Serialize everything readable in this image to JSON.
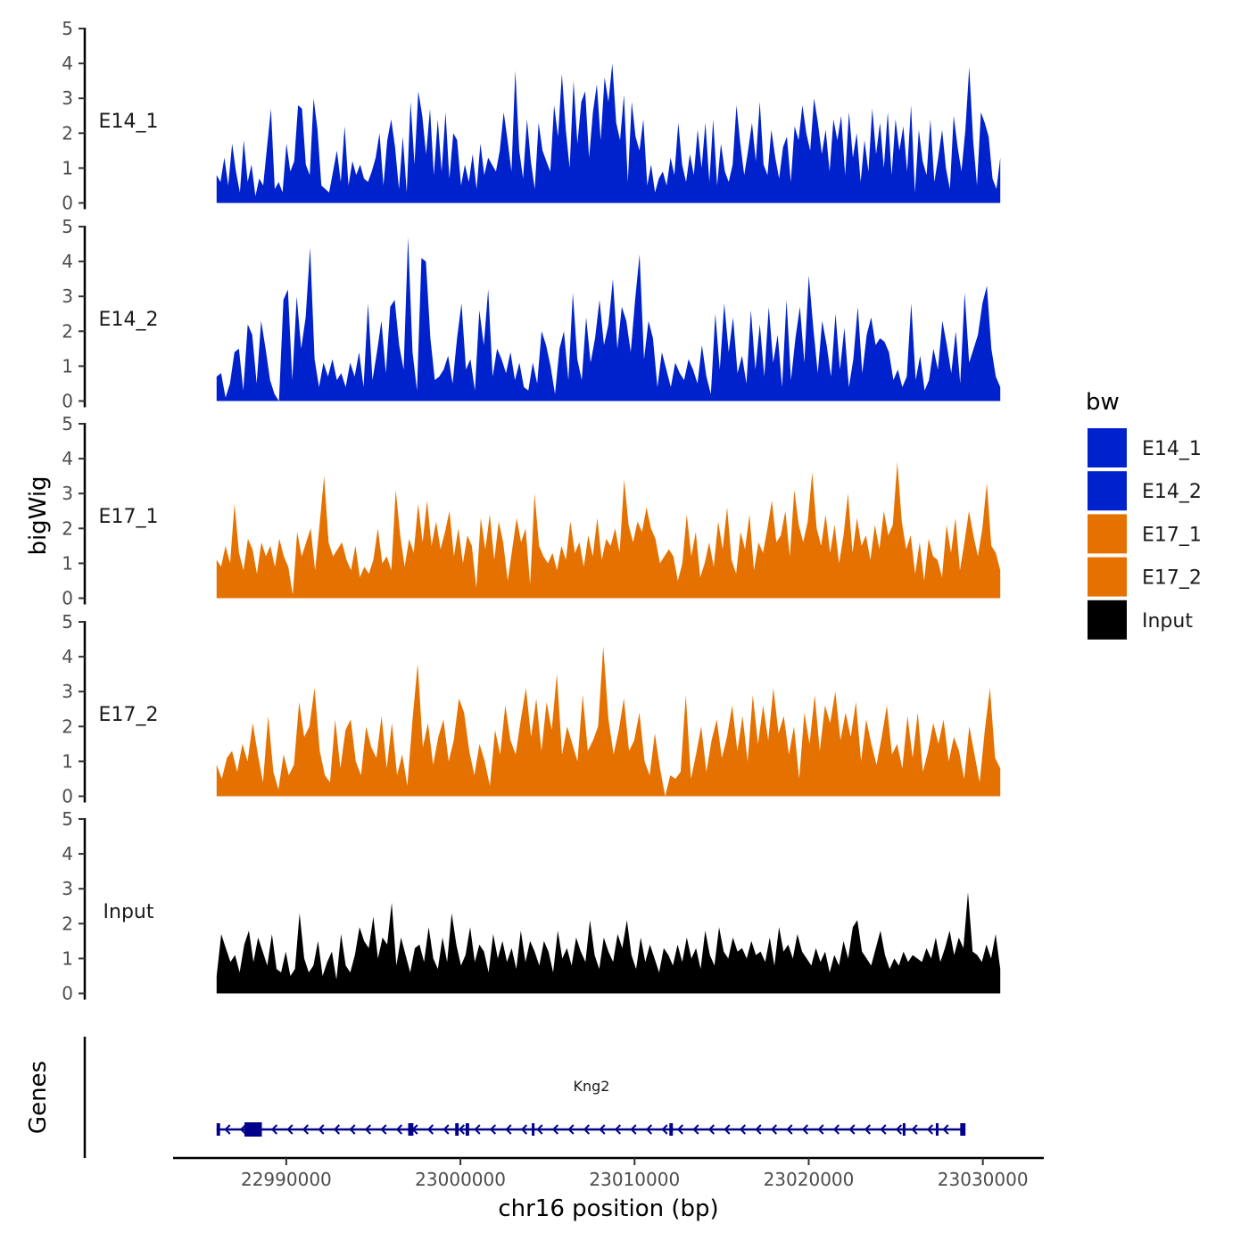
{
  "chart_data": {
    "type": "area",
    "chromosome": "chr16",
    "y_axis_title": "bigWig",
    "x_axis_title": "chr16 position (bp)",
    "x_range": [
      22983500,
      23033500
    ],
    "data_range": [
      22986000,
      23031000
    ],
    "x_ticks": [
      22990000,
      23000000,
      23010000,
      23020000,
      23030000
    ],
    "x_tick_labels": [
      "22990000",
      "23000000",
      "23010000",
      "23020000",
      "23030000"
    ],
    "y_range": [
      0,
      5
    ],
    "y_ticks": [
      0,
      1,
      2,
      3,
      4,
      5
    ],
    "y_tick_labels": [
      "0",
      "1",
      "2",
      "3",
      "4",
      "5"
    ],
    "legend": {
      "title": "bw",
      "position": "right",
      "entries": [
        {
          "label": "E14_1",
          "color": "#0022cc"
        },
        {
          "label": "E14_2",
          "color": "#0022cc"
        },
        {
          "label": "E17_1",
          "color": "#e57200"
        },
        {
          "label": "E17_2",
          "color": "#e57200"
        },
        {
          "label": "Input",
          "color": "#000000"
        }
      ]
    },
    "series": [
      {
        "name": "E14_1",
        "color": "#0022cc",
        "values": [
          0.8,
          0.6,
          1.3,
          0.5,
          1.7,
          0.9,
          0.3,
          1.8,
          0.6,
          1.1,
          0.2,
          0.7,
          0.5,
          1.6,
          2.7,
          0.4,
          0.6,
          0.3,
          1.7,
          0.9,
          1.2,
          2.8,
          2.7,
          1.1,
          0.8,
          3.0,
          2.1,
          0.5,
          0.4,
          0.3,
          0.9,
          1.5,
          0.6,
          2.2,
          0.5,
          1.2,
          0.8,
          1.1,
          0.7,
          0.6,
          0.9,
          1.3,
          2.0,
          0.5,
          1.8,
          2.4,
          1.6,
          0.4,
          1.9,
          0.3,
          2.9,
          1.1,
          3.2,
          2.5,
          1.4,
          2.7,
          0.8,
          2.4,
          0.9,
          2.6,
          0.7,
          2.0,
          1.8,
          0.5,
          1.1,
          0.6,
          1.4,
          0.4,
          1.7,
          0.8,
          1.3,
          1.1,
          0.9,
          1.5,
          2.6,
          1.8,
          0.9,
          3.8,
          1.5,
          0.7,
          2.4,
          1.2,
          0.4,
          2.3,
          1.5,
          1.2,
          0.9,
          2.8,
          1.9,
          3.7,
          2.1,
          1.0,
          3.5,
          1.7,
          2.9,
          3.2,
          1.3,
          2.6,
          3.4,
          1.8,
          3.6,
          2.9,
          4.0,
          2.3,
          1.8,
          3.1,
          0.6,
          2.9,
          1.9,
          1.5,
          2.4,
          0.5,
          1.1,
          0.3,
          0.7,
          0.9,
          0.5,
          1.3,
          0.8,
          2.3,
          1.1,
          0.6,
          1.4,
          0.8,
          2.1,
          1.0,
          2.3,
          0.6,
          2.4,
          0.5,
          1.7,
          0.9,
          0.6,
          1.1,
          2.8,
          1.7,
          0.8,
          1.5,
          2.3,
          1.2,
          2.9,
          1.1,
          0.8,
          2.1,
          1.3,
          0.7,
          1.6,
          1.9,
          0.6,
          2.2,
          1.8,
          2.8,
          2.0,
          1.5,
          3.0,
          2.3,
          1.4,
          2.1,
          0.9,
          2.4,
          1.8,
          2.5,
          0.8,
          2.6,
          1.3,
          2.0,
          0.6,
          1.8,
          0.9,
          2.7,
          1.4,
          2.3,
          1.0,
          2.6,
          0.8,
          2.4,
          1.5,
          2.2,
          0.9,
          2.8,
          0.3,
          2.1,
          1.2,
          0.8,
          2.4,
          0.6,
          1.3,
          2.1,
          1.0,
          0.4,
          2.5,
          1.6,
          0.9,
          2.1,
          3.9,
          1.8,
          0.5,
          2.6,
          2.3,
          1.9,
          0.7,
          0.4,
          1.3
        ]
      },
      {
        "name": "E14_2",
        "color": "#0022cc",
        "values": [
          0.7,
          0.8,
          0.1,
          0.5,
          1.4,
          1.5,
          0.3,
          2.2,
          1.9,
          0.5,
          2.3,
          1.5,
          0.6,
          0.2,
          0.0,
          2.9,
          3.2,
          0.6,
          3.0,
          1.5,
          2.4,
          4.4,
          1.2,
          0.4,
          1.1,
          0.7,
          1.2,
          0.6,
          0.8,
          0.4,
          1.1,
          0.7,
          1.4,
          0.4,
          2.8,
          0.6,
          1.4,
          2.3,
          0.8,
          2.7,
          2.9,
          1.6,
          0.9,
          4.7,
          1.4,
          0.3,
          4.1,
          4.0,
          1.8,
          0.6,
          0.7,
          0.9,
          1.3,
          0.5,
          1.8,
          2.8,
          0.9,
          1.2,
          0.3,
          2.6,
          1.6,
          3.2,
          0.7,
          1.5,
          1.2,
          0.8,
          1.4,
          0.6,
          1.1,
          0.4,
          0.3,
          1.1,
          0.5,
          2.0,
          1.6,
          1.0,
          0.2,
          1.5,
          2.0,
          0.6,
          3.1,
          1.2,
          0.6,
          2.4,
          1.1,
          1.8,
          2.9,
          1.6,
          2.2,
          3.5,
          1.5,
          2.7,
          2.3,
          1.4,
          2.9,
          4.2,
          1.2,
          2.3,
          1.8,
          0.4,
          1.4,
          0.9,
          0.4,
          1.1,
          0.8,
          0.6,
          1.2,
          0.9,
          0.5,
          1.6,
          0.7,
          0.2,
          2.5,
          0.9,
          2.8,
          1.4,
          2.4,
          0.8,
          1.3,
          0.5,
          2.6,
          0.9,
          2.2,
          0.7,
          2.7,
          1.1,
          1.9,
          0.4,
          2.9,
          0.6,
          1.8,
          2.7,
          1.1,
          3.6,
          2.1,
          0.8,
          2.3,
          1.6,
          0.7,
          2.5,
          0.9,
          2.1,
          0.4,
          1.2,
          2.7,
          0.8,
          1.9,
          2.4,
          1.6,
          1.8,
          1.7,
          1.4,
          0.6,
          0.9,
          0.4,
          0.7,
          2.8,
          0.6,
          1.3,
          0.3,
          0.6,
          1.5,
          0.9,
          2.3,
          1.6,
          0.8,
          2.0,
          0.5,
          3.1,
          1.1,
          1.5,
          1.9,
          2.8,
          3.3,
          1.5,
          0.7,
          0.4
        ]
      },
      {
        "name": "E17_1",
        "color": "#e57200",
        "values": [
          1.1,
          0.9,
          1.5,
          1.0,
          2.7,
          1.3,
          0.8,
          1.7,
          1.4,
          0.7,
          1.6,
          1.2,
          1.5,
          0.9,
          1.7,
          1.2,
          0.9,
          0.1,
          1.9,
          1.2,
          1.6,
          2.0,
          0.8,
          2.1,
          3.5,
          1.6,
          1.2,
          1.4,
          1.6,
          1.1,
          0.8,
          1.5,
          0.6,
          0.9,
          0.7,
          1.1,
          2.0,
          1.0,
          1.2,
          0.8,
          3.1,
          1.8,
          0.9,
          1.7,
          1.3,
          2.7,
          1.6,
          2.8,
          1.5,
          2.2,
          1.4,
          1.9,
          2.5,
          1.2,
          2.0,
          1.0,
          1.8,
          1.5,
          0.3,
          2.3,
          1.4,
          2.4,
          1.1,
          2.2,
          1.6,
          0.5,
          1.4,
          2.3,
          1.6,
          2.0,
          0.4,
          3.0,
          1.5,
          1.2,
          1.0,
          1.3,
          0.8,
          1.5,
          1.1,
          2.2,
          1.3,
          1.6,
          0.9,
          1.8,
          1.2,
          2.3,
          1.1,
          1.7,
          1.5,
          2.0,
          1.3,
          3.4,
          2.1,
          1.6,
          2.2,
          1.9,
          2.6,
          2.0,
          1.7,
          1.0,
          1.2,
          1.4,
          1.2,
          0.5,
          1.0,
          2.4,
          1.2,
          1.9,
          0.6,
          1.0,
          1.6,
          0.9,
          2.2,
          1.4,
          2.6,
          1.1,
          0.7,
          1.9,
          1.4,
          2.4,
          0.8,
          1.6,
          1.3,
          2.0,
          2.8,
          1.6,
          1.8,
          2.5,
          1.2,
          3.1,
          2.1,
          1.6,
          2.2,
          3.6,
          2.0,
          1.5,
          2.4,
          1.3,
          2.1,
          1.0,
          1.8,
          3.0,
          1.3,
          2.3,
          1.5,
          1.8,
          1.1,
          2.1,
          1.4,
          2.5,
          1.8,
          2.1,
          3.9,
          2.2,
          1.4,
          1.8,
          0.7,
          1.6,
          0.5,
          1.7,
          1.2,
          1.1,
          0.6,
          2.1,
          1.3,
          2.3,
          0.8,
          1.6,
          2.5,
          1.8,
          1.2,
          2.0,
          3.3,
          1.5,
          1.3,
          0.8
        ]
      },
      {
        "name": "E17_2",
        "color": "#e57200",
        "values": [
          0.9,
          0.5,
          1.1,
          1.3,
          0.7,
          1.5,
          1.0,
          2.1,
          1.2,
          0.4,
          2.3,
          0.7,
          0.2,
          1.2,
          0.6,
          0.9,
          2.7,
          1.7,
          2.0,
          3.1,
          1.3,
          0.6,
          0.4,
          2.2,
          0.8,
          1.9,
          2.2,
          1.0,
          0.6,
          2.0,
          1.4,
          1.1,
          2.3,
          0.8,
          2.1,
          0.6,
          1.2,
          0.3,
          2.2,
          3.8,
          1.4,
          2.1,
          0.9,
          1.7,
          2.2,
          1.0,
          1.6,
          2.8,
          2.4,
          1.3,
          0.6,
          1.5,
          1.0,
          0.3,
          1.9,
          1.2,
          2.6,
          1.6,
          1.2,
          2.2,
          3.1,
          1.7,
          2.8,
          1.3,
          2.7,
          1.9,
          3.5,
          1.2,
          2.0,
          1.5,
          1.0,
          2.9,
          1.3,
          1.6,
          2.0,
          4.3,
          2.2,
          1.2,
          1.9,
          2.8,
          1.3,
          1.6,
          2.4,
          1.0,
          0.6,
          1.8,
          0.8,
          0.0,
          0.6,
          0.5,
          0.7,
          2.9,
          0.5,
          1.2,
          2.0,
          0.7,
          1.6,
          2.2,
          1.1,
          1.7,
          2.6,
          1.3,
          2.3,
          1.0,
          2.9,
          1.5,
          2.6,
          1.6,
          3.1,
          1.8,
          2.3,
          1.2,
          2.0,
          0.5,
          2.4,
          1.5,
          2.9,
          1.3,
          2.6,
          2.1,
          3.0,
          1.6,
          2.4,
          1.7,
          2.7,
          1.0,
          2.2,
          1.5,
          0.9,
          1.7,
          2.6,
          1.2,
          1.5,
          0.8,
          2.3,
          1.1,
          2.4,
          0.7,
          1.3,
          2.1,
          1.5,
          2.2,
          1.0,
          1.7,
          1.3,
          0.5,
          2.0,
          1.2,
          0.4,
          1.9,
          3.1,
          1.1,
          0.8
        ]
      },
      {
        "name": "Input",
        "color": "#000000",
        "values": [
          0.5,
          1.7,
          1.3,
          0.9,
          1.1,
          0.6,
          1.4,
          1.8,
          0.9,
          1.6,
          1.2,
          0.8,
          1.7,
          0.7,
          0.6,
          1.2,
          0.5,
          0.7,
          2.3,
          1.0,
          0.6,
          0.8,
          1.5,
          0.5,
          0.9,
          1.2,
          0.4,
          1.7,
          0.8,
          0.6,
          1.1,
          1.9,
          1.5,
          1.3,
          2.2,
          1.0,
          1.6,
          1.4,
          2.6,
          0.8,
          1.6,
          1.1,
          0.6,
          1.3,
          1.4,
          0.9,
          1.9,
          1.0,
          0.7,
          1.6,
          0.9,
          2.3,
          1.4,
          0.8,
          1.1,
          1.9,
          0.9,
          1.4,
          1.2,
          0.6,
          1.7,
          1.0,
          1.5,
          0.9,
          1.3,
          0.7,
          1.8,
          0.9,
          1.5,
          1.2,
          0.8,
          1.5,
          1.2,
          0.6,
          1.8,
          1.0,
          1.3,
          0.8,
          1.6,
          1.2,
          0.9,
          2.1,
          1.1,
          0.7,
          1.6,
          1.2,
          0.9,
          1.7,
          1.3,
          2.1,
          1.1,
          0.7,
          1.6,
          0.9,
          1.4,
          1.0,
          0.6,
          1.3,
          1.1,
          0.8,
          1.4,
          0.9,
          1.6,
          1.0,
          1.3,
          0.7,
          1.8,
          1.1,
          0.8,
          1.9,
          1.2,
          1.0,
          1.6,
          1.2,
          1.3,
          1.0,
          1.5,
          1.1,
          1.2,
          0.9,
          1.6,
          0.8,
          1.9,
          1.2,
          1.4,
          1.0,
          1.7,
          1.2,
          1.0,
          0.8,
          1.3,
          0.9,
          1.2,
          0.6,
          1.1,
          0.8,
          1.5,
          1.0,
          1.9,
          2.1,
          1.2,
          1.0,
          0.8,
          1.3,
          1.8,
          1.1,
          0.7,
          1.0,
          0.8,
          1.2,
          0.9,
          1.1,
          1.0,
          0.9,
          1.3,
          1.0,
          1.6,
          0.9,
          1.3,
          1.8,
          1.1,
          1.6,
          1.3,
          2.9,
          1.2,
          1.1,
          0.9,
          1.4,
          1.0,
          1.7,
          0.7
        ]
      }
    ],
    "gene_track": {
      "title": "Genes",
      "gene": {
        "name": "Kng2",
        "start": 22986000,
        "end": 23029000,
        "strand": "-",
        "exons": [
          [
            22986000,
            22986200
          ],
          [
            22987600,
            22988600
          ],
          [
            22997000,
            22997300
          ],
          [
            22999700,
            22999900
          ],
          [
            23000300,
            23000500
          ],
          [
            23004100,
            23004200
          ],
          [
            23012000,
            23012200
          ],
          [
            23025400,
            23025500
          ],
          [
            23027300,
            23027400
          ],
          [
            23028700,
            23029000
          ]
        ]
      }
    }
  }
}
